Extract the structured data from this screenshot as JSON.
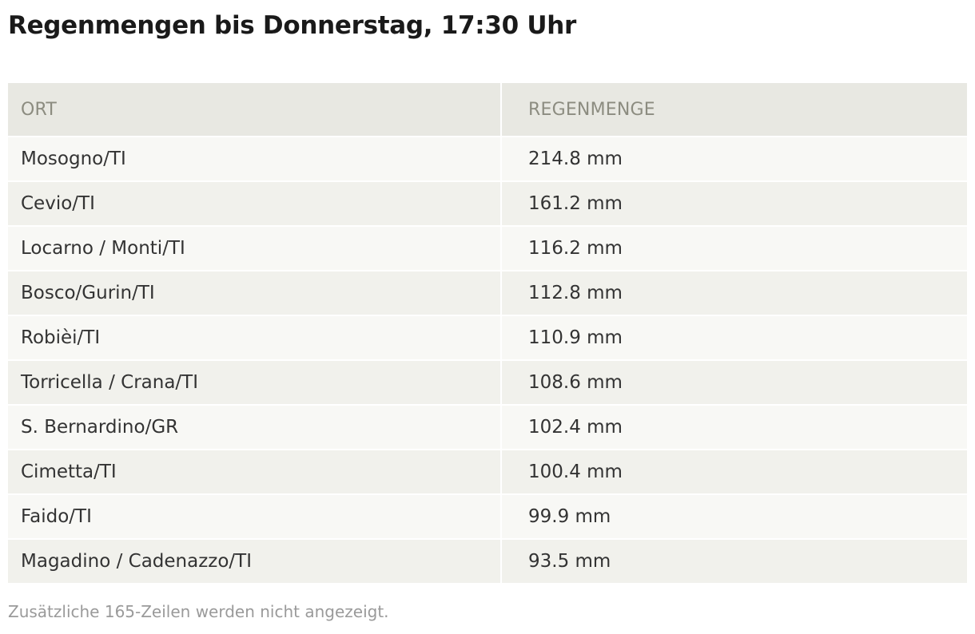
{
  "title": "Regenmengen bis Donnerstag, 17:30 Uhr",
  "table": {
    "headers": [
      "ORT",
      "REGENMENGE"
    ],
    "rows": [
      [
        "Mosogno/TI",
        "214.8 mm"
      ],
      [
        "Cevio/TI",
        "161.2 mm"
      ],
      [
        "Locarno / Monti/TI",
        "116.2 mm"
      ],
      [
        "Bosco/Gurin/TI",
        "112.8 mm"
      ],
      [
        "Robièi/TI",
        "110.9 mm"
      ],
      [
        "Torricella / Crana/TI",
        "108.6 mm"
      ],
      [
        "S. Bernardino/GR",
        "102.4 mm"
      ],
      [
        "Cimetta/TI",
        "100.4 mm"
      ],
      [
        "Faido/TI",
        "99.9 mm"
      ],
      [
        "Magadino / Cadenazzo/TI",
        "93.5 mm"
      ]
    ]
  },
  "footnote": "Zusätzliche 165-Zeilen werden nicht angezeigt.",
  "colors": {
    "header_bg": "#e8e8e2",
    "header_text": "#8c8c80",
    "row_light": "#f8f8f5",
    "row_dark": "#f1f1ec"
  }
}
